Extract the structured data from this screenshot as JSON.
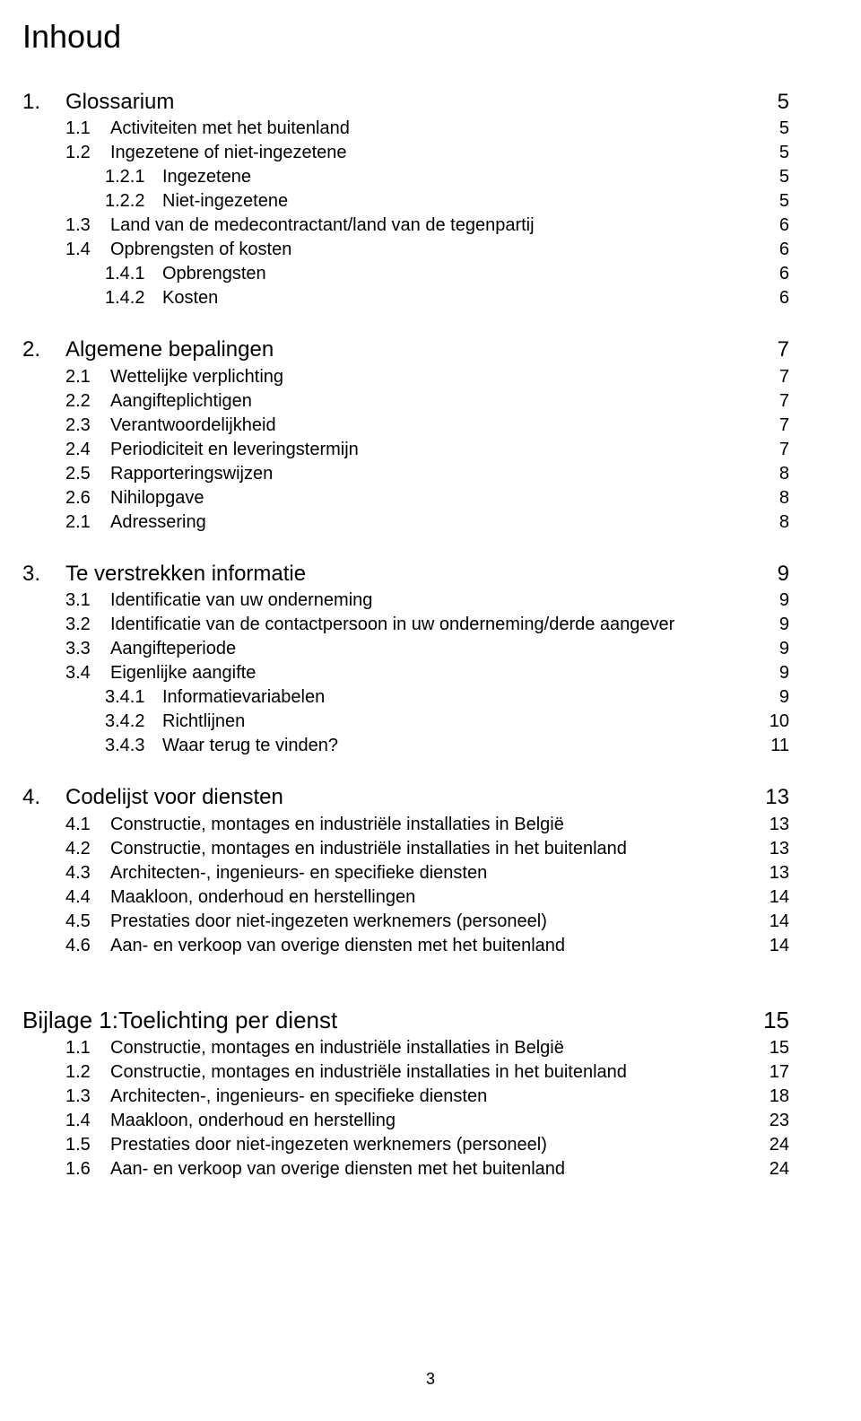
{
  "title": "Inhoud",
  "page_number": "3",
  "sections": [
    {
      "num": "1.",
      "label": "Glossarium",
      "page": "5",
      "items": [
        {
          "level": "sub",
          "num": "1.1",
          "label": "Activiteiten met het buitenland",
          "page": "5"
        },
        {
          "level": "sub",
          "num": "1.2",
          "label": "Ingezetene of niet-ingezetene",
          "page": "5"
        },
        {
          "level": "subsub",
          "num": "1.2.1",
          "label": "Ingezetene",
          "page": "5"
        },
        {
          "level": "subsub",
          "num": "1.2.2",
          "label": "Niet-ingezetene",
          "page": "5"
        },
        {
          "level": "sub",
          "num": "1.3",
          "label": "Land van de medecontractant/land van de tegenpartij",
          "page": "6"
        },
        {
          "level": "sub",
          "num": "1.4",
          "label": "Opbrengsten of kosten",
          "page": "6"
        },
        {
          "level": "subsub",
          "num": "1.4.1",
          "label": "Opbrengsten",
          "page": "6"
        },
        {
          "level": "subsub",
          "num": "1.4.2",
          "label": "Kosten",
          "page": "6"
        }
      ]
    },
    {
      "num": "2.",
      "label": "Algemene bepalingen",
      "page": "7",
      "items": [
        {
          "level": "sub",
          "num": "2.1",
          "label": "Wettelijke verplichting",
          "page": "7"
        },
        {
          "level": "sub",
          "num": "2.2",
          "label": "Aangifteplichtigen",
          "page": "7"
        },
        {
          "level": "sub",
          "num": "2.3",
          "label": "Verantwoordelijkheid",
          "page": "7"
        },
        {
          "level": "sub",
          "num": "2.4",
          "label": "Periodiciteit en leveringstermijn",
          "page": "7"
        },
        {
          "level": "sub",
          "num": "2.5",
          "label": "Rapporteringswijzen",
          "page": "8"
        },
        {
          "level": "sub",
          "num": "2.6",
          "label": "Nihilopgave",
          "page": "8"
        },
        {
          "level": "sub",
          "num": "2.1",
          "label": "Adressering",
          "page": "8"
        }
      ]
    },
    {
      "num": "3.",
      "label": "Te verstrekken informatie",
      "page": "9",
      "items": [
        {
          "level": "sub",
          "num": "3.1",
          "label": "Identificatie van uw onderneming",
          "page": "9"
        },
        {
          "level": "sub",
          "num": "3.2",
          "label": "Identificatie van de contactpersoon in uw onderneming/derde aangever",
          "page": "9"
        },
        {
          "level": "sub",
          "num": "3.3",
          "label": "Aangifteperiode",
          "page": "9"
        },
        {
          "level": "sub",
          "num": "3.4",
          "label": "Eigenlijke aangifte",
          "page": "9"
        },
        {
          "level": "subsub",
          "num": "3.4.1",
          "label": "Informatievariabelen",
          "page": "9"
        },
        {
          "level": "subsub",
          "num": "3.4.2",
          "label": "Richtlijnen",
          "page": "10"
        },
        {
          "level": "subsub",
          "num": "3.4.3",
          "label": "Waar terug te vinden?",
          "page": "11"
        }
      ]
    },
    {
      "num": "4.",
      "label": "Codelijst voor diensten",
      "page": "13",
      "items": [
        {
          "level": "sub",
          "num": "4.1",
          "label": "Constructie, montages en industriële installaties in België",
          "page": "13"
        },
        {
          "level": "sub",
          "num": "4.2",
          "label": "Constructie, montages en industriële installaties in het buitenland",
          "page": "13"
        },
        {
          "level": "sub",
          "num": "4.3",
          "label": "Architecten-, ingenieurs- en specifieke diensten",
          "page": "13"
        },
        {
          "level": "sub",
          "num": "4.4",
          "label": "Maakloon, onderhoud en herstellingen",
          "page": "14"
        },
        {
          "level": "sub",
          "num": "4.5",
          "label": "Prestaties door niet-ingezeten werknemers (personeel)",
          "page": "14"
        },
        {
          "level": "sub",
          "num": "4.6",
          "label": "Aan- en verkoop van overige diensten met het buitenland",
          "page": "14"
        }
      ]
    }
  ],
  "appendix": {
    "title_num": "Bijlage 1:",
    "title_label": "Toelichting per dienst",
    "title_page": "15",
    "items": [
      {
        "level": "sub",
        "num": "1.1",
        "label": "Constructie, montages en industriële installaties in België",
        "page": "15"
      },
      {
        "level": "sub",
        "num": "1.2",
        "label": "Constructie, montages en industriële installaties in het buitenland",
        "page": "17"
      },
      {
        "level": "sub",
        "num": "1.3",
        "label": "Architecten-, ingenieurs- en specifieke diensten",
        "page": "18"
      },
      {
        "level": "sub",
        "num": "1.4",
        "label": "Maakloon, onderhoud en herstelling",
        "page": "23"
      },
      {
        "level": "sub",
        "num": "1.5",
        "label": "Prestaties door niet-ingezeten werknemers (personeel)",
        "page": "24"
      },
      {
        "level": "sub",
        "num": "1.6",
        "label": "Aan- en verkoop van overige diensten met het buitenland",
        "page": "24"
      }
    ]
  }
}
